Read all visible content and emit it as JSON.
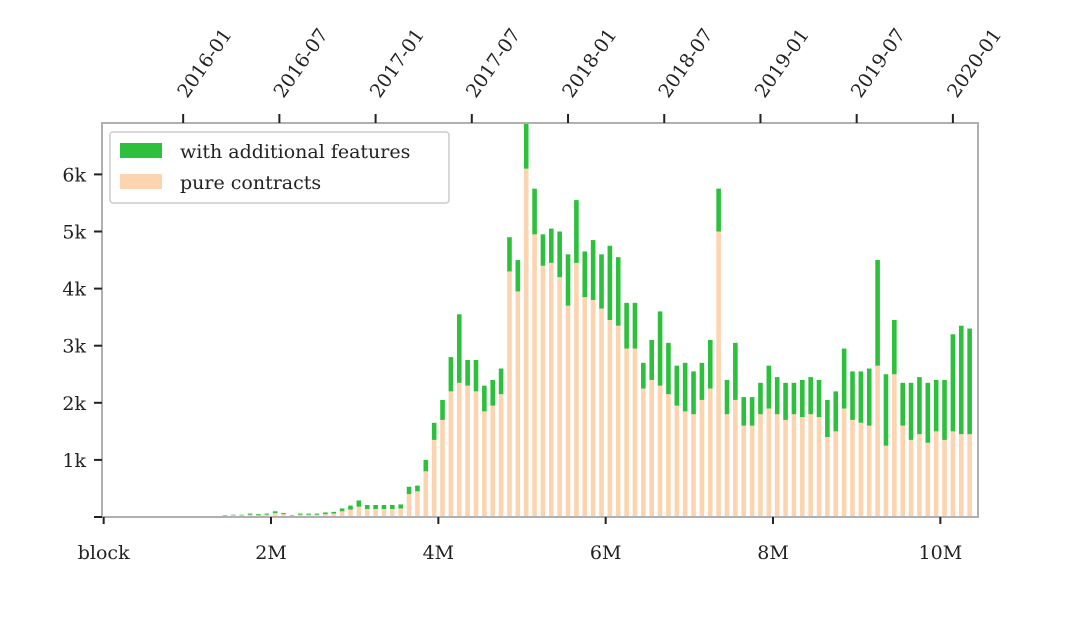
{
  "chart_data": {
    "type": "bar",
    "stacked": true,
    "title": "",
    "xlabel": "",
    "ylabel": "",
    "colors": {
      "pure": "#fcd5b0",
      "additional": "#2dc03c",
      "frame": "#b0b0b0"
    },
    "legend": {
      "position": "top-left",
      "entries": [
        {
          "key": "additional",
          "label": "with additional features"
        },
        {
          "key": "pure",
          "label": "pure contracts"
        }
      ]
    },
    "x_axis": {
      "lim": [
        -20000,
        10450000
      ],
      "ticks": [
        {
          "value": 0,
          "label": "block"
        },
        {
          "value": 2000000,
          "label": "2M"
        },
        {
          "value": 4000000,
          "label": "4M"
        },
        {
          "value": 6000000,
          "label": "6M"
        },
        {
          "value": 8000000,
          "label": "8M"
        },
        {
          "value": 10000000,
          "label": "10M"
        }
      ]
    },
    "top_axis": {
      "ticks": [
        {
          "value": 950000,
          "label": "2016-01"
        },
        {
          "value": 2100000,
          "label": "2016-07"
        },
        {
          "value": 3250000,
          "label": "2017-01"
        },
        {
          "value": 4400000,
          "label": "2017-07"
        },
        {
          "value": 5550000,
          "label": "2018-01"
        },
        {
          "value": 6700000,
          "label": "2018-07"
        },
        {
          "value": 7850000,
          "label": "2019-01"
        },
        {
          "value": 9000000,
          "label": "2019-07"
        },
        {
          "value": 10150000,
          "label": "2020-01"
        }
      ]
    },
    "y_axis": {
      "lim": [
        0,
        6900
      ],
      "ticks": [
        {
          "value": 1000,
          "label": "1k"
        },
        {
          "value": 2000,
          "label": "2k"
        },
        {
          "value": 3000,
          "label": "3k"
        },
        {
          "value": 4000,
          "label": "4k"
        },
        {
          "value": 5000,
          "label": "5k"
        },
        {
          "value": 6000,
          "label": "6k"
        }
      ]
    },
    "bin_width": 100000,
    "x": [
      1450000,
      1550000,
      1650000,
      1750000,
      1850000,
      1950000,
      2050000,
      2150000,
      2250000,
      2350000,
      2450000,
      2550000,
      2650000,
      2750000,
      2850000,
      2950000,
      3050000,
      3150000,
      3250000,
      3350000,
      3450000,
      3550000,
      3650000,
      3750000,
      3850000,
      3950000,
      4050000,
      4150000,
      4250000,
      4350000,
      4450000,
      4550000,
      4650000,
      4750000,
      4850000,
      4950000,
      5050000,
      5150000,
      5250000,
      5350000,
      5450000,
      5550000,
      5650000,
      5750000,
      5850000,
      5950000,
      6050000,
      6150000,
      6250000,
      6350000,
      6450000,
      6550000,
      6650000,
      6750000,
      6850000,
      6950000,
      7050000,
      7150000,
      7250000,
      7350000,
      7450000,
      7550000,
      7650000,
      7750000,
      7850000,
      7950000,
      8050000,
      8150000,
      8250000,
      8350000,
      8450000,
      8550000,
      8650000,
      8750000,
      8850000,
      8950000,
      9050000,
      9150000,
      9250000,
      9350000,
      9450000,
      9550000,
      9650000,
      9750000,
      9850000,
      9950000,
      10050000,
      10150000,
      10250000,
      10350000
    ],
    "series": [
      {
        "key": "pure",
        "name": "pure contracts",
        "values": [
          20,
          30,
          30,
          40,
          30,
          40,
          70,
          50,
          20,
          40,
          40,
          40,
          50,
          60,
          100,
          130,
          180,
          140,
          140,
          140,
          140,
          150,
          400,
          450,
          800,
          1350,
          1700,
          2200,
          2350,
          2300,
          2200,
          1850,
          1950,
          2150,
          4300,
          3950,
          6100,
          4950,
          4400,
          4450,
          4200,
          3700,
          4450,
          3850,
          3800,
          3650,
          3450,
          3350,
          2950,
          2950,
          2250,
          2400,
          2300,
          2150,
          1950,
          1850,
          1800,
          2050,
          2250,
          5000,
          1800,
          2050,
          1600,
          1600,
          1800,
          1900,
          1800,
          1700,
          1800,
          1750,
          1800,
          1750,
          1400,
          1500,
          1900,
          1700,
          1650,
          1600,
          2650,
          1250,
          2500,
          1600,
          1350,
          1450,
          1300,
          1500,
          1350,
          1500,
          1450,
          1450
        ]
      },
      {
        "key": "additional",
        "name": "with additional features",
        "values": [
          10,
          10,
          10,
          20,
          20,
          20,
          30,
          20,
          10,
          20,
          20,
          20,
          30,
          30,
          50,
          70,
          110,
          70,
          70,
          70,
          70,
          70,
          130,
          100,
          200,
          300,
          350,
          600,
          1200,
          450,
          550,
          450,
          450,
          450,
          600,
          550,
          800,
          800,
          550,
          600,
          800,
          900,
          1100,
          800,
          1050,
          950,
          1300,
          1200,
          800,
          800,
          450,
          700,
          1300,
          900,
          700,
          850,
          750,
          650,
          850,
          750,
          600,
          1000,
          500,
          500,
          550,
          750,
          650,
          650,
          550,
          650,
          650,
          650,
          650,
          700,
          1050,
          850,
          900,
          1000,
          1850,
          1250,
          950,
          750,
          1000,
          1000,
          1050,
          900,
          1050,
          1700,
          1900,
          1850
        ]
      }
    ]
  }
}
